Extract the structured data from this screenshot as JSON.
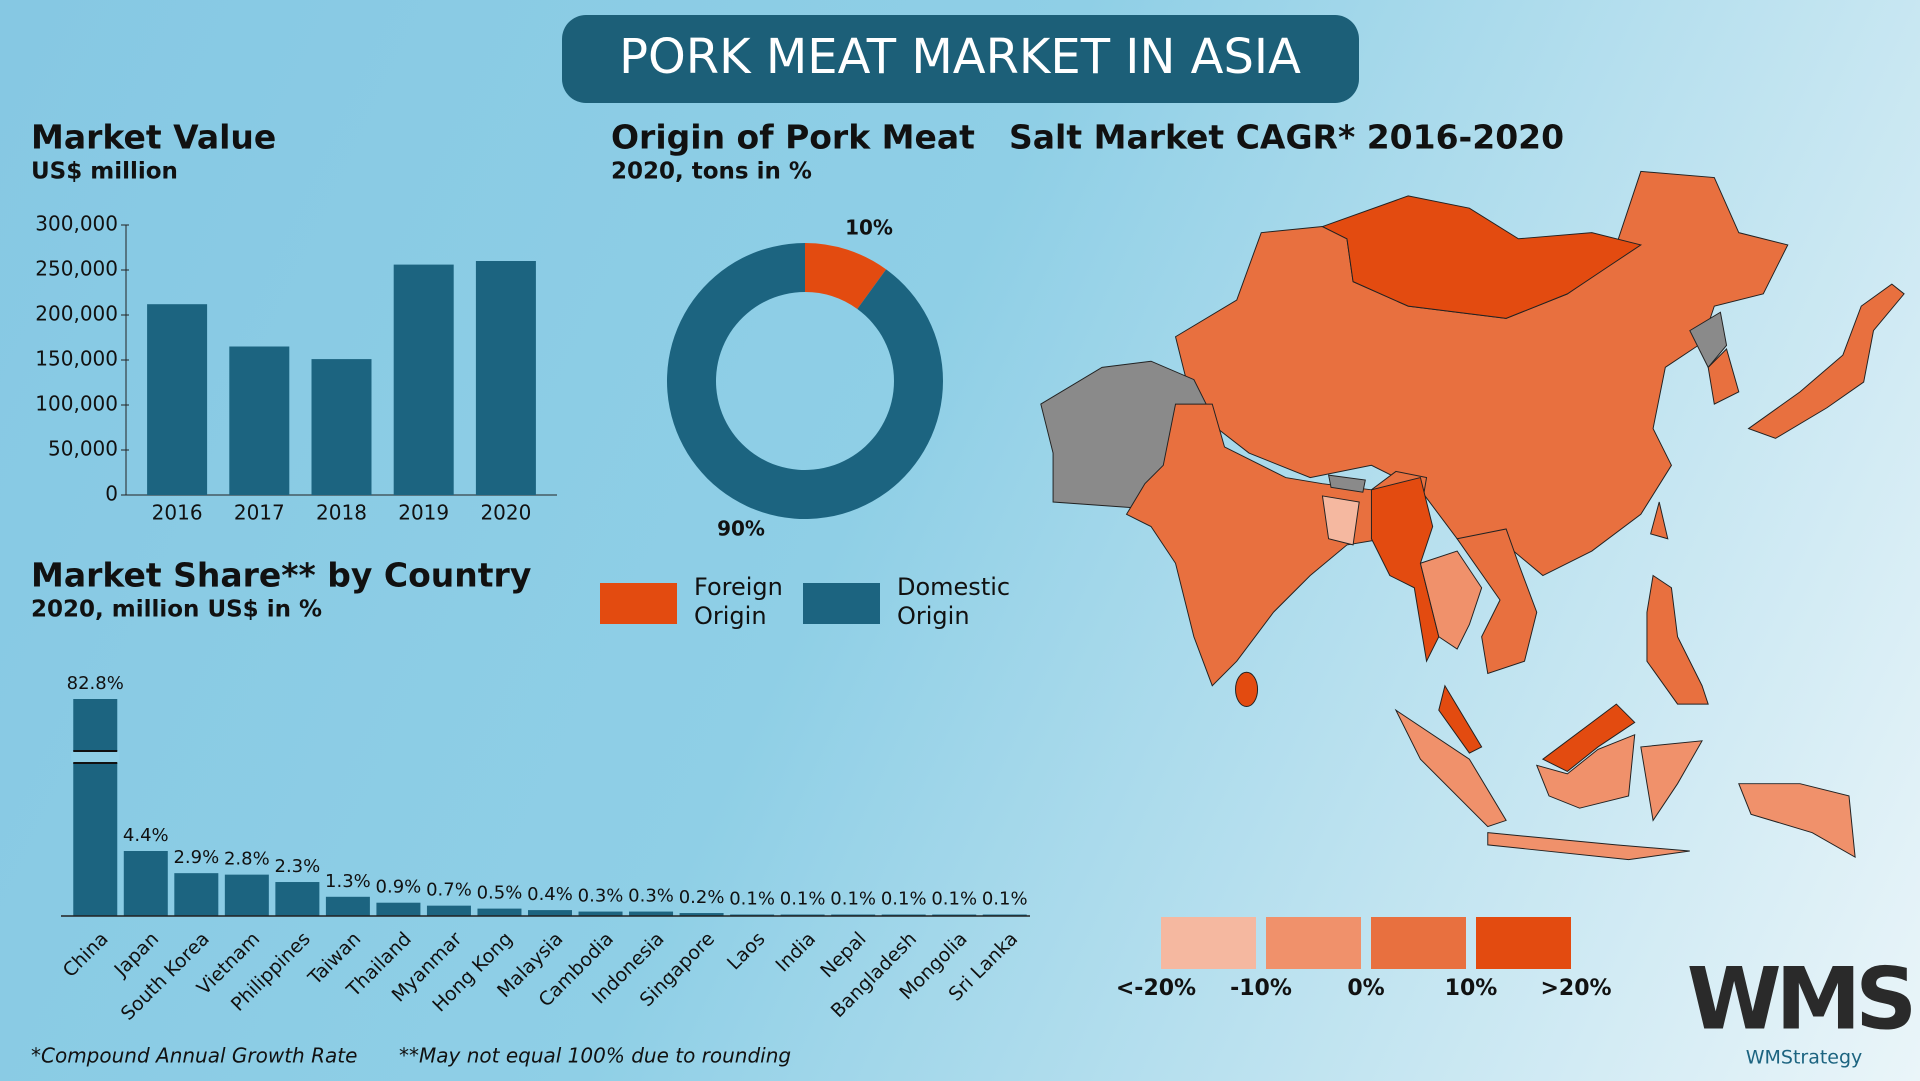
{
  "title": "PORK MEAT MARKET IN ASIA",
  "chart_data": [
    {
      "type": "bar",
      "title": "Market Value",
      "subtitle": "US$ million",
      "categories": [
        "2016",
        "2017",
        "2018",
        "2019",
        "2020"
      ],
      "values": [
        212000,
        165000,
        151000,
        256000,
        260000
      ],
      "color": "#1c6480",
      "ylim": [
        0,
        300000
      ],
      "yticks": [
        0,
        {
          "value": 50000,
          "label": "50,000"
        },
        {
          "value": 100000,
          "label": "100,000"
        },
        {
          "value": 150000,
          "label": "150,000"
        },
        {
          "value": 200000,
          "label": "200,000"
        },
        {
          "value": 250000,
          "label": "250,000"
        },
        {
          "value": 300000,
          "label": "300,000"
        }
      ]
    },
    {
      "type": "donut",
      "title": "Origin of Pork Meat",
      "subtitle": "2020, tons in %",
      "categories": [
        "Foreign Origin",
        "Domestic Origin"
      ],
      "values": [
        10,
        90
      ],
      "value_labels": [
        "10%",
        "90%"
      ],
      "colors": [
        "#e34b10",
        "#1c6480"
      ]
    },
    {
      "type": "broken_bar",
      "title": "Market Share** by Country",
      "subtitle": "2020, million US$ in %",
      "axis_break": true,
      "categories": [
        "China",
        "Japan",
        "South Korea",
        "Vietnam",
        "Philippines",
        "Taiwan",
        "Thailand",
        "Myanmar",
        "Hong Kong",
        "Malaysia",
        "Cambodia",
        "Indonesia",
        "Singapore",
        "Laos",
        "India",
        "Nepal",
        "Bangladesh",
        "Mongolia",
        "Sri Lanka"
      ],
      "values": [
        82.8,
        4.4,
        2.9,
        2.8,
        2.3,
        1.3,
        0.9,
        0.7,
        0.5,
        0.4,
        0.3,
        0.3,
        0.2,
        0.1,
        0.1,
        0.1,
        0.1,
        0.1,
        0.1
      ],
      "value_labels": [
        "82.8%",
        "4.4%",
        "2.9%",
        "2.8%",
        "2.3%",
        "1.3%",
        "0.9%",
        "0.7%",
        "0.5%",
        "0.4%",
        "0.3%",
        "0.3%",
        "0.2%",
        "0.1%",
        "0.1%",
        "0.1%",
        "0.1%",
        "0.1%",
        "0.1%"
      ],
      "color": "#1c6480"
    },
    {
      "type": "map",
      "title": "Salt Market CAGR* 2016-2020",
      "legend_labels": [
        "<-20%",
        "-10%",
        "0%",
        "10%",
        ">20%"
      ],
      "legend_colors": [
        "#f5b8a0",
        "#f0916b",
        "#e8703f",
        "#e34b10"
      ]
    }
  ],
  "footnotes": [
    "*Compound Annual Growth Rate",
    "**May not equal 100% due to rounding"
  ],
  "logo": {
    "mark": "WMS",
    "name": "WMStrategy"
  }
}
